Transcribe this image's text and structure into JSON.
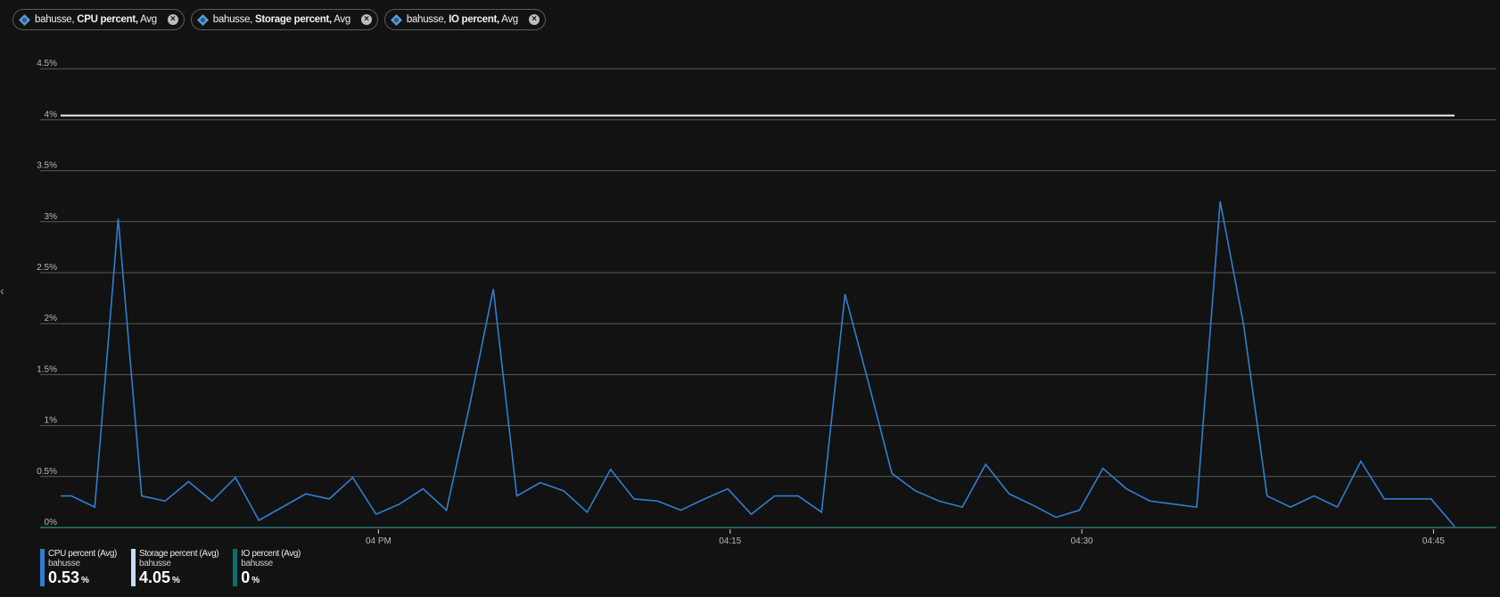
{
  "chips": [
    {
      "resource": "bahusse,",
      "metric": "CPU percent,",
      "agg": "Avg",
      "icon": "database-resource-icon"
    },
    {
      "resource": "bahusse,",
      "metric": "Storage percent,",
      "agg": "Avg",
      "icon": "database-resource-icon"
    },
    {
      "resource": "bahusse,",
      "metric": "IO percent,",
      "agg": "Avg",
      "icon": "database-resource-icon"
    }
  ],
  "collapse_arrow": "‹",
  "legend": [
    {
      "name": "CPU percent (Avg)",
      "resource": "bahusse",
      "value": "0.53",
      "unit": "%",
      "color": "#2f7fd1"
    },
    {
      "name": "Storage percent (Avg)",
      "resource": "bahusse",
      "value": "4.05",
      "unit": "%",
      "color": "#c7dcf5"
    },
    {
      "name": "IO percent (Avg)",
      "resource": "bahusse",
      "value": "0",
      "unit": "%",
      "color": "#0f6c6c"
    }
  ],
  "chart_data": {
    "type": "line",
    "title": "",
    "xlabel": "",
    "ylabel": "",
    "ylim": [
      0,
      4.5
    ],
    "yticks": [
      "0%",
      "0.5%",
      "1%",
      "1.5%",
      "2%",
      "2.5%",
      "3%",
      "3.5%",
      "4%",
      "4.5%"
    ],
    "xticks": [
      {
        "label": "04 PM",
        "index": 13.1
      },
      {
        "label": "04:15",
        "index": 28.1
      },
      {
        "label": "04:30",
        "index": 43.1
      },
      {
        "label": "04:45",
        "index": 58.1
      }
    ],
    "grid": true,
    "legend_position": "bottom",
    "series": [
      {
        "name": "CPU percent (Avg)",
        "color": "#2f7fd1",
        "values": [
          0.31,
          0.2,
          3.03,
          0.31,
          0.26,
          0.45,
          0.26,
          0.49,
          0.07,
          0.2,
          0.33,
          0.28,
          0.49,
          0.13,
          0.23,
          0.38,
          0.17,
          1.21,
          2.34,
          0.31,
          0.44,
          0.36,
          0.15,
          0.57,
          0.28,
          0.26,
          0.17,
          0.28,
          0.38,
          0.13,
          0.31,
          0.31,
          0.15,
          2.29,
          1.42,
          0.53,
          0.36,
          0.26,
          0.2,
          0.62,
          0.33,
          0.22,
          0.1,
          0.17,
          0.58,
          0.38,
          0.26,
          0.23,
          0.2,
          3.2,
          1.99,
          0.31,
          0.2,
          0.31,
          0.2,
          0.65,
          0.28,
          0.28,
          0.28,
          0.01
        ]
      },
      {
        "name": "Storage percent (Avg)",
        "color": "#e6f0fb",
        "constant": 4.05
      },
      {
        "name": "IO percent (Avg)",
        "color": "#2b7a7a",
        "constant": 0
      }
    ]
  }
}
